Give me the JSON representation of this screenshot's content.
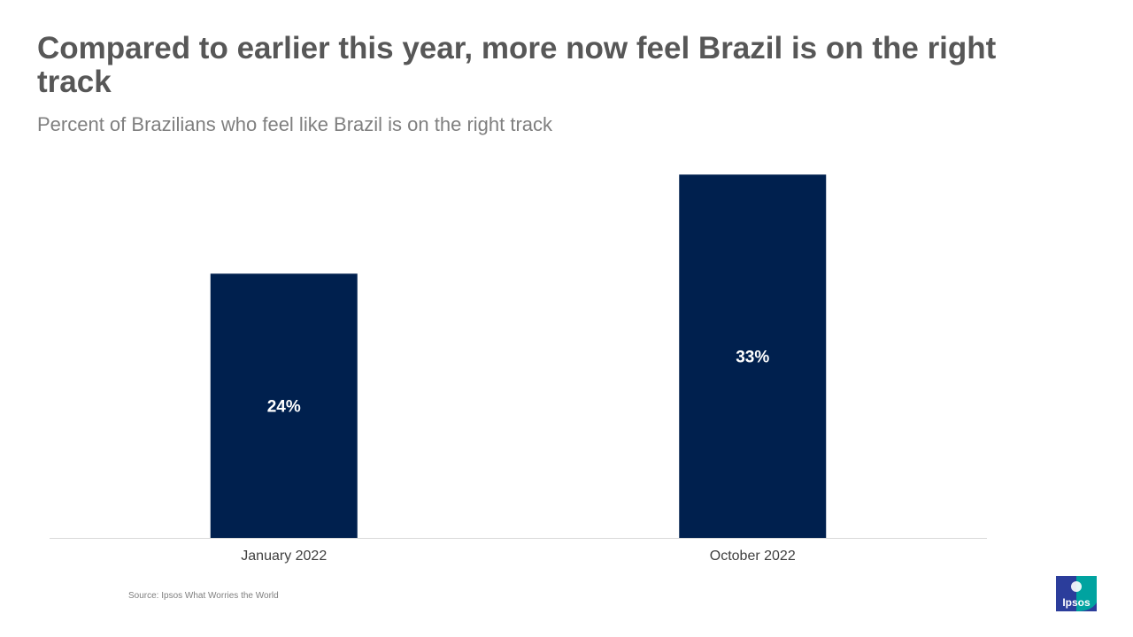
{
  "header": {
    "title": "Compared to earlier this year, more now feel Brazil is on the right track",
    "subtitle": "Percent of Brazilians who feel like Brazil is on the right track"
  },
  "footer": {
    "source": "Source: Ipsos What Worries the World",
    "logo_text": "Ipsos"
  },
  "colors": {
    "bar": "#00204e",
    "axis": "#d9d9d9",
    "logo_blue": "#2b3d9b",
    "logo_teal": "#00a3a0"
  },
  "chart_data": {
    "type": "bar",
    "title": "Compared to earlier this year, more now feel Brazil is on the right track",
    "subtitle": "Percent of Brazilians who feel like Brazil is on the right track",
    "categories": [
      "January 2022",
      "October 2022"
    ],
    "values": [
      24,
      33
    ],
    "data_labels": [
      "24%",
      "33%"
    ],
    "xlabel": "",
    "ylabel": "",
    "ylim": [
      0,
      36
    ],
    "grid": false,
    "legend": "none"
  }
}
